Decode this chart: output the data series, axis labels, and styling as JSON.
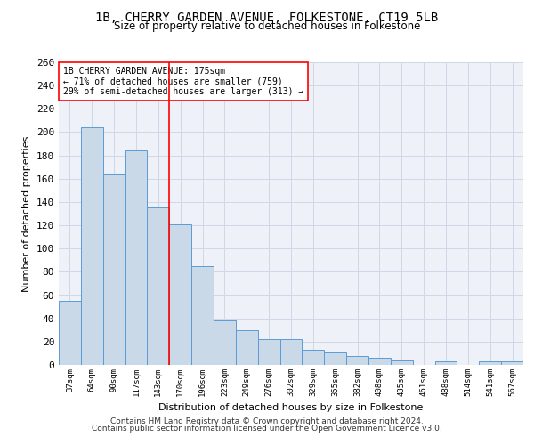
{
  "title1": "1B, CHERRY GARDEN AVENUE, FOLKESTONE, CT19 5LB",
  "title2": "Size of property relative to detached houses in Folkestone",
  "xlabel": "Distribution of detached houses by size in Folkestone",
  "ylabel": "Number of detached properties",
  "categories": [
    "37sqm",
    "64sqm",
    "90sqm",
    "117sqm",
    "143sqm",
    "170sqm",
    "196sqm",
    "223sqm",
    "249sqm",
    "276sqm",
    "302sqm",
    "329sqm",
    "355sqm",
    "382sqm",
    "408sqm",
    "435sqm",
    "461sqm",
    "488sqm",
    "514sqm",
    "541sqm",
    "567sqm"
  ],
  "values": [
    55,
    204,
    164,
    184,
    135,
    121,
    85,
    38,
    30,
    22,
    22,
    13,
    11,
    8,
    6,
    4,
    0,
    3,
    0,
    3,
    3
  ],
  "bar_color": "#c9d9e8",
  "bar_edgecolor": "#5b9bd5",
  "vline_index": 5,
  "annotation_lines": [
    "1B CHERRY GARDEN AVENUE: 175sqm",
    "← 71% of detached houses are smaller (759)",
    "29% of semi-detached houses are larger (313) →"
  ],
  "ylim": [
    0,
    260
  ],
  "yticks": [
    0,
    20,
    40,
    60,
    80,
    100,
    120,
    140,
    160,
    180,
    200,
    220,
    240,
    260
  ],
  "grid_color": "#d0d8e8",
  "background_color": "#eef2f8",
  "footer1": "Contains HM Land Registry data © Crown copyright and database right 2024.",
  "footer2": "Contains public sector information licensed under the Open Government Licence v3.0."
}
